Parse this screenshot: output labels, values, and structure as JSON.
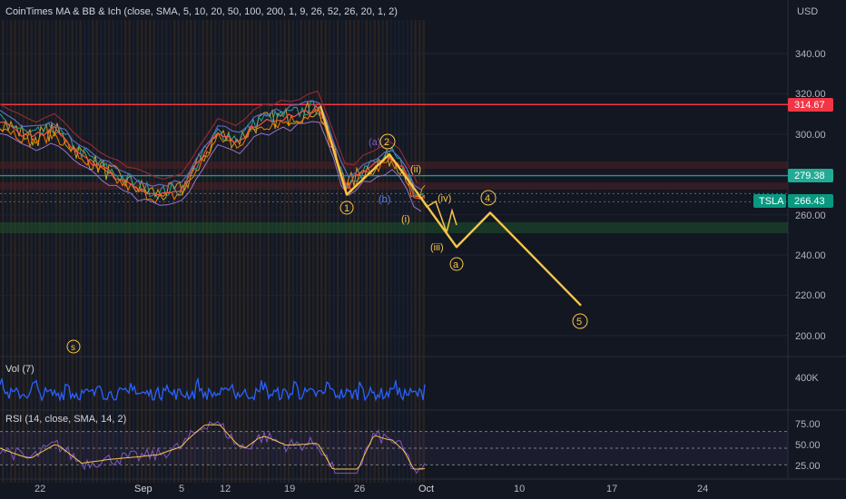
{
  "indicator_title": "CoinTimes MA & BB & Ich (close, SMA, 5, 10, 20, 50, 100, 200, 1, 9, 26, 52, 26, 20, 1, 2)",
  "currency": "USD",
  "volume_pane": {
    "label": "Vol (7)",
    "tick": "400K"
  },
  "rsi_pane": {
    "label": "RSI (14, close, SMA, 14, 2)",
    "ticks": [
      "75.00",
      "50.00",
      "25.00"
    ]
  },
  "price_axis": {
    "ticks": [
      "340.00",
      "320.00",
      "300.00",
      "260.00",
      "240.00",
      "220.00",
      "200.00"
    ],
    "ylim": [
      190,
      358
    ]
  },
  "time_axis": {
    "labels": [
      "22",
      "Sep",
      "5",
      "12",
      "19",
      "26",
      "Oct",
      "10",
      "17",
      "24"
    ]
  },
  "price_labels": [
    {
      "text": "314.67",
      "value": 314.67,
      "color": "#f23645"
    },
    {
      "text": "279.38",
      "value": 279.38,
      "color": "#22ab94"
    },
    {
      "ticker": "TSLA",
      "text": "266.43",
      "value": 266.43,
      "color": "#089981"
    }
  ],
  "chart_data": {
    "type": "line",
    "ticker": "TSLA",
    "levels": [
      314.67,
      279.38,
      266.43
    ],
    "wave_labels": [
      "1",
      "2",
      "(a)",
      "(b)",
      "(i)",
      "(ii)",
      "(iii)",
      "(iv)",
      "a",
      "4",
      "5",
      "s"
    ],
    "wave_projection_points": [
      [
        "Sep 22",
        314
      ],
      [
        "Sep 25",
        270
      ],
      [
        "Sep 29",
        290
      ],
      [
        "Oct 3",
        244
      ],
      [
        "Oct 7",
        261
      ],
      [
        "Oct 14",
        215
      ]
    ]
  },
  "colors": {
    "accent": "#f7c548",
    "resistance": "#f23645",
    "support": "#22ab94",
    "rsi": "#7e57c2",
    "volume": "#2962ff"
  }
}
